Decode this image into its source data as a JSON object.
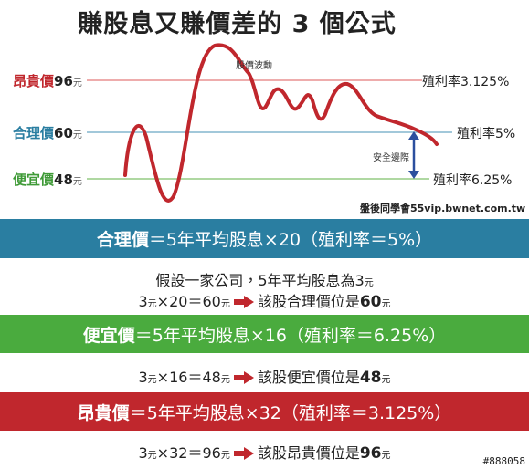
{
  "title": "賺股息又賺價差的 3 個公式",
  "chart": {
    "levels": [
      {
        "name": "昂貴價",
        "price": "96",
        "unit": "元",
        "yield": "殖利率3.125%"
      },
      {
        "name": "合理價",
        "price": "60",
        "unit": "元",
        "yield": "殖利率5%"
      },
      {
        "name": "便宜價",
        "price": "48",
        "unit": "元",
        "yield": "殖利率6.25%"
      }
    ],
    "curve_label": "股價波動",
    "margin_label": "安全邊際",
    "source": "盤後同學會55vip.bwnet.com.tw"
  },
  "formulas": [
    {
      "label": "合理價",
      "formula": "＝5年平均股息×20（殖利率＝5%）",
      "lines": [
        [
          "假設一家公司，5年平均股息為3",
          "元"
        ],
        [
          "3",
          "元",
          "×20＝60",
          "元",
          "該股合理價位是",
          "60",
          "元"
        ]
      ]
    },
    {
      "label": "便宜價",
      "formula": "＝5年平均股息×16（殖利率＝6.25%）",
      "lines": [
        [
          "3",
          "元",
          "×16＝48",
          "元",
          "該股便宜價位是",
          "48",
          "元"
        ]
      ]
    },
    {
      "label": "昂貴價",
      "formula": "＝5年平均股息×32（殖利率＝3.125%）",
      "lines": [
        [
          "3",
          "元",
          "×32＝96",
          "元",
          "該股昂貴價位是",
          "96",
          "元"
        ]
      ]
    }
  ],
  "image_id": "#888058"
}
